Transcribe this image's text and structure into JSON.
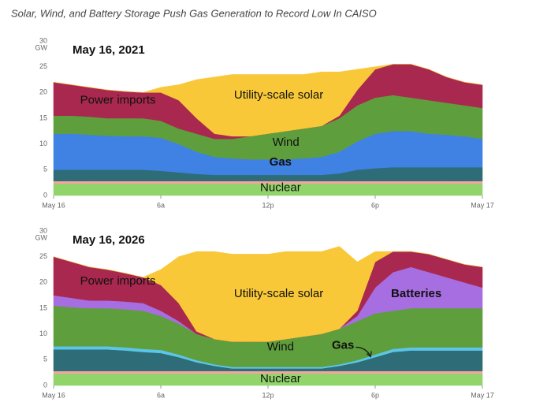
{
  "title": "Solar, Wind, and Battery Storage Push Gas Generation to Record Low In CAISO",
  "chart_data": [
    {
      "type": "stacked-area",
      "title": "May 16, 2021",
      "y_unit": "GW",
      "x": [
        0,
        1,
        2,
        3,
        4,
        5,
        6,
        7,
        8,
        9,
        10,
        11,
        12,
        13,
        14,
        15,
        16,
        17,
        18,
        19,
        20,
        21,
        22,
        23,
        24
      ],
      "xlim": [
        0,
        24
      ],
      "xticks": [
        {
          "value": 0,
          "label": "May 16"
        },
        {
          "value": 6,
          "label": "6a"
        },
        {
          "value": 12,
          "label": "12p"
        },
        {
          "value": 18,
          "label": "6p"
        },
        {
          "value": 24,
          "label": "May 17"
        }
      ],
      "ylim": [
        0,
        30
      ],
      "yticks": [
        0,
        5,
        10,
        15,
        20,
        25,
        30
      ],
      "grid": false,
      "series": [
        {
          "name": "Nuclear",
          "color": "#90d46a",
          "values": [
            2.3,
            2.3,
            2.3,
            2.3,
            2.3,
            2.3,
            2.3,
            2.3,
            2.3,
            2.3,
            2.3,
            2.3,
            2.3,
            2.3,
            2.3,
            2.3,
            2.3,
            2.3,
            2.3,
            2.3,
            2.3,
            2.3,
            2.3,
            2.3,
            2.3
          ]
        },
        {
          "color": "#f4a59e",
          "values": [
            0.5,
            0.5,
            0.5,
            0.5,
            0.5,
            0.5,
            0.5,
            0.5,
            0.5,
            0.5,
            0.5,
            0.5,
            0.5,
            0.5,
            0.5,
            0.5,
            0.5,
            0.5,
            0.5,
            0.5,
            0.5,
            0.5,
            0.5,
            0.5,
            0.5
          ]
        },
        {
          "color": "#2e6d77",
          "values": [
            2.2,
            2.2,
            2.2,
            2.2,
            2.2,
            2.2,
            2.0,
            1.7,
            1.4,
            1.2,
            1.2,
            1.2,
            1.2,
            1.2,
            1.2,
            1.2,
            1.5,
            2.2,
            2.5,
            2.7,
            2.7,
            2.7,
            2.7,
            2.7,
            2.7
          ]
        },
        {
          "name": "Gas",
          "color": "#3f82e4",
          "values": [
            7.0,
            7.0,
            6.8,
            6.6,
            6.5,
            6.5,
            6.4,
            5.5,
            4.3,
            3.5,
            3.2,
            3.0,
            3.0,
            3.0,
            3.2,
            3.5,
            4.2,
            5.5,
            6.7,
            7.0,
            7.0,
            6.5,
            6.3,
            6.0,
            5.5
          ]
        },
        {
          "name": "Wind",
          "color": "#5f9e3c",
          "values": [
            3.5,
            3.5,
            3.5,
            3.4,
            3.5,
            3.5,
            3.3,
            3.0,
            3.5,
            3.5,
            3.8,
            4.5,
            5.0,
            5.5,
            5.8,
            6.0,
            6.5,
            7.0,
            7.0,
            7.0,
            6.5,
            6.5,
            6.2,
            6.0,
            6.0
          ]
        },
        {
          "name": "Power imports",
          "color": "#a9284f",
          "values": [
            6.5,
            6.0,
            5.7,
            5.5,
            5.2,
            5.0,
            5.5,
            5.5,
            3.0,
            1.0,
            0.5,
            0,
            0,
            0,
            0,
            0,
            0.5,
            3.0,
            5.5,
            6.0,
            6.5,
            6.0,
            5.0,
            4.5,
            4.5
          ]
        },
        {
          "name": "Utility-scale solar",
          "color": "#f9c838",
          "values": [
            0,
            0,
            0,
            0,
            0,
            0,
            1.0,
            3.0,
            7.5,
            11.0,
            12.0,
            12.0,
            11.5,
            11.0,
            10.5,
            10.5,
            8.5,
            4.0,
            0.5,
            0,
            0,
            0,
            0,
            0,
            0
          ]
        }
      ]
    },
    {
      "type": "stacked-area",
      "title": "May 16, 2026",
      "y_unit": "GW",
      "x": [
        0,
        1,
        2,
        3,
        4,
        5,
        6,
        7,
        8,
        9,
        10,
        11,
        12,
        13,
        14,
        15,
        16,
        17,
        18,
        19,
        20,
        21,
        22,
        23,
        24
      ],
      "xlim": [
        0,
        24
      ],
      "xticks": [
        {
          "value": 0,
          "label": "May 16"
        },
        {
          "value": 6,
          "label": "6a"
        },
        {
          "value": 12,
          "label": "12p"
        },
        {
          "value": 18,
          "label": "6p"
        },
        {
          "value": 24,
          "label": "May 17"
        }
      ],
      "ylim": [
        0,
        30
      ],
      "yticks": [
        0,
        5,
        10,
        15,
        20,
        25,
        30
      ],
      "grid": false,
      "series": [
        {
          "name": "Nuclear",
          "color": "#90d46a",
          "values": [
            2.3,
            2.3,
            2.3,
            2.3,
            2.3,
            2.3,
            2.3,
            2.3,
            2.3,
            2.3,
            2.3,
            2.3,
            2.3,
            2.3,
            2.3,
            2.3,
            2.3,
            2.3,
            2.3,
            2.3,
            2.3,
            2.3,
            2.3,
            2.3,
            2.3
          ]
        },
        {
          "color": "#f4a59e",
          "values": [
            0.5,
            0.5,
            0.5,
            0.5,
            0.5,
            0.5,
            0.5,
            0.5,
            0.5,
            0.5,
            0.5,
            0.5,
            0.5,
            0.5,
            0.5,
            0.5,
            0.5,
            0.5,
            0.5,
            0.5,
            0.5,
            0.5,
            0.5,
            0.5,
            0.5
          ]
        },
        {
          "color": "#2e6d77",
          "values": [
            4.2,
            4.2,
            4.2,
            4.2,
            4.0,
            3.7,
            3.5,
            2.7,
            1.7,
            1.0,
            0.5,
            0.5,
            0.5,
            0.5,
            0.5,
            0.5,
            1.0,
            1.7,
            2.7,
            3.7,
            4.0,
            4.0,
            4.0,
            4.0,
            4.0
          ]
        },
        {
          "name": "Gas",
          "color": "#5cc6ea",
          "values": [
            0.6,
            0.6,
            0.6,
            0.6,
            0.6,
            0.6,
            0.6,
            0.5,
            0.4,
            0.3,
            0.3,
            0.3,
            0.3,
            0.3,
            0.3,
            0.3,
            0.3,
            0.4,
            0.5,
            0.6,
            0.6,
            0.6,
            0.6,
            0.6,
            0.6
          ]
        },
        {
          "name": "Wind",
          "color": "#5f9e3c",
          "values": [
            7.9,
            7.6,
            7.4,
            7.4,
            7.4,
            7.4,
            6.6,
            6.0,
            5.1,
            4.9,
            4.9,
            4.9,
            4.9,
            5.4,
            5.9,
            6.4,
            6.9,
            7.6,
            8.0,
            7.4,
            7.6,
            7.6,
            7.6,
            7.6,
            7.6
          ]
        },
        {
          "name": "Batteries",
          "color": "#a66ee0",
          "values": [
            2.0,
            1.8,
            1.5,
            1.5,
            1.5,
            1.5,
            1.0,
            0.5,
            0,
            0,
            0,
            0,
            0,
            0,
            0,
            0,
            0,
            1.0,
            5.0,
            7.5,
            8.0,
            7.0,
            6.0,
            5.0,
            4.0
          ]
        },
        {
          "name": "Power imports",
          "color": "#a9284f",
          "values": [
            7.5,
            7.0,
            6.5,
            6.0,
            5.5,
            5.0,
            5.0,
            3.5,
            0.5,
            0,
            0,
            0,
            0,
            0,
            0,
            0,
            0,
            1.0,
            5.0,
            4.0,
            3.0,
            3.5,
            3.5,
            3.5,
            4.0
          ]
        },
        {
          "name": "Utility-scale solar",
          "color": "#f9c838",
          "values": [
            0,
            0,
            0,
            0,
            0,
            0,
            3.0,
            9.0,
            15.5,
            17.0,
            17.0,
            17.0,
            17.0,
            17.0,
            16.5,
            16.0,
            16.0,
            9.5,
            2.0,
            0,
            0,
            0,
            0,
            0,
            0
          ]
        }
      ]
    }
  ]
}
